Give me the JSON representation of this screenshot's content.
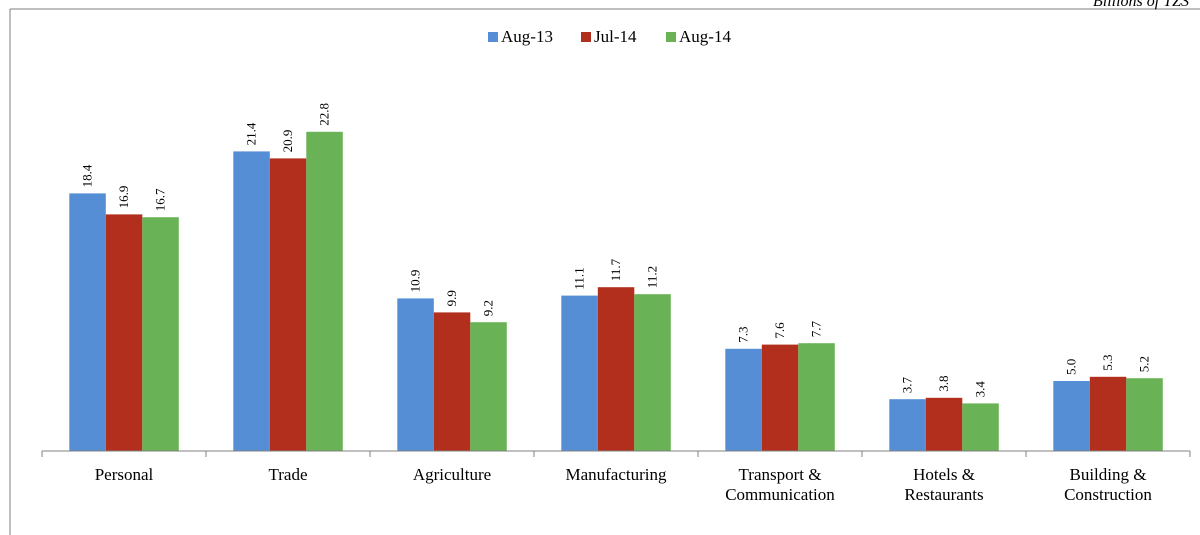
{
  "chart_data": {
    "type": "bar",
    "unit_label": "Billions of TZS",
    "categories": [
      [
        "Personal"
      ],
      [
        "Trade"
      ],
      [
        "Agriculture"
      ],
      [
        "Manufacturing"
      ],
      [
        "Transport &",
        "Communication"
      ],
      [
        "Hotels &",
        "Restaurants"
      ],
      [
        "Building &",
        "Construction"
      ]
    ],
    "series": [
      {
        "name": "Aug-13",
        "color": "#558ED5",
        "values": [
          18.4,
          21.4,
          10.9,
          11.1,
          7.3,
          3.7,
          5.0
        ]
      },
      {
        "name": "Jul-14",
        "color": "#B22F1E",
        "values": [
          16.9,
          20.9,
          9.9,
          11.7,
          7.6,
          3.8,
          5.3
        ]
      },
      {
        "name": "Aug-14",
        "color": "#6AB256",
        "values": [
          16.7,
          22.8,
          9.2,
          11.2,
          7.7,
          3.4,
          5.2
        ]
      }
    ],
    "data_labels": true,
    "legend_position": "top",
    "grid": false
  }
}
